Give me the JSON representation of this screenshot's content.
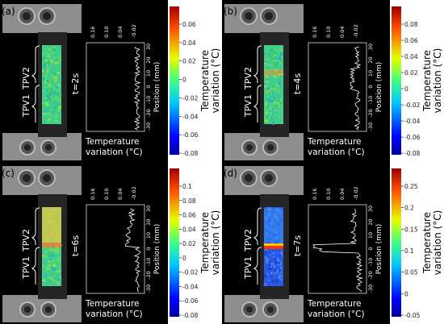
{
  "panels": [
    {
      "label": "(a)",
      "time": "t=2s",
      "upper_region": "TPV2",
      "lower_region": "TPV1",
      "plot_ticks_top": [
        "0.16",
        "0.10",
        "0.04",
        "-0.02"
      ],
      "plot_ticks_side": [
        "30",
        "20",
        "10",
        "0",
        "-10",
        "-20",
        "-30"
      ],
      "position_label": "Position (mm)",
      "xlabel_line1": "Temperature",
      "xlabel_line2": "variation (°C)",
      "colorbar_ticks": [
        "0.06",
        "0.04",
        "0.02",
        "0",
        "-0.02",
        "-0.04",
        "-0.06",
        "-0.08"
      ],
      "colorbar_title_line1": "Temperature",
      "colorbar_title_line2": "variation (°C)"
    },
    {
      "label": "(b)",
      "time": "t=4s",
      "upper_region": "TPV2",
      "lower_region": "TPV1",
      "plot_ticks_top": [
        "0.16",
        "0.10",
        "0.04",
        "-0.02"
      ],
      "plot_ticks_side": [
        "30",
        "20",
        "10",
        "0",
        "-10",
        "-20",
        "-30"
      ],
      "position_label": "Position (mm)",
      "xlabel_line1": "Temperature",
      "xlabel_line2": "variation (°C)",
      "colorbar_ticks": [
        "0.08",
        "0.06",
        "0.04",
        "0.02",
        "0",
        "-0.02",
        "-0.04",
        "-0.06",
        "-0.08"
      ],
      "colorbar_title_line1": "Temperature",
      "colorbar_title_line2": "variation (°C)"
    },
    {
      "label": "(c)",
      "time": "t=6s",
      "upper_region": "TPV2",
      "lower_region": "TPV1",
      "plot_ticks_top": [
        "0.16",
        "0.10",
        "0.04",
        "-0.02"
      ],
      "plot_ticks_side": [
        "30",
        "20",
        "10",
        "0",
        "-10",
        "-20",
        "-30"
      ],
      "position_label": "Position (mm)",
      "xlabel_line1": "Temperature",
      "xlabel_line2": "variation (°C)",
      "colorbar_ticks": [
        "0.1",
        "0.08",
        "0.06",
        "0.04",
        "0.02",
        "0",
        "-0.02",
        "-0.04",
        "-0.06",
        "-0.08"
      ],
      "colorbar_title_line1": "Temperature",
      "colorbar_title_line2": "variation (°C)"
    },
    {
      "label": "(d)",
      "time": "t=7s",
      "upper_region": "TPV2",
      "lower_region": "TPV1",
      "plot_ticks_top": [
        "0.16",
        "0.10",
        "0.04",
        "-0.02"
      ],
      "plot_ticks_side": [
        "30",
        "20",
        "10",
        "0",
        "-10",
        "-20",
        "-30"
      ],
      "position_label": "Position (mm)",
      "xlabel_line1": "Temperature",
      "xlabel_line2": "variation (°C)",
      "colorbar_ticks": [
        "0.25",
        "0.2",
        "0.15",
        "0.1",
        "0.05",
        "0",
        "-0.05"
      ],
      "colorbar_title_line1": "Temperature",
      "colorbar_title_line2": "variation (°C)"
    }
  ]
}
